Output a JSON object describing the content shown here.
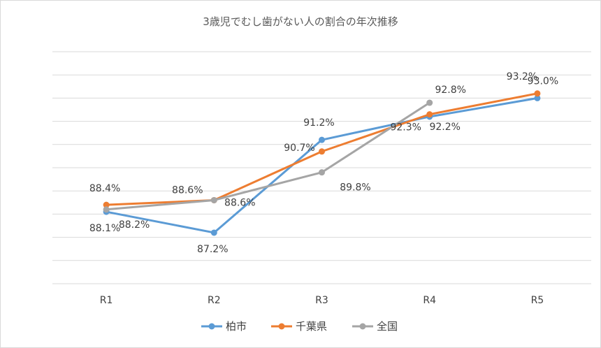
{
  "chart_data": {
    "type": "line",
    "title": "3歳児でむし歯がない人の割合の年次推移",
    "categories": [
      "R1",
      "R2",
      "R3",
      "R4",
      "R5"
    ],
    "ylim": [
      85.0,
      95.0
    ],
    "grid": true,
    "legend_position": "bottom",
    "series": [
      {
        "name": "柏市",
        "color": "#5b9bd5",
        "values": [
          88.1,
          87.2,
          91.2,
          92.2,
          93.0
        ],
        "labels": [
          "88.1%",
          "87.2%",
          "91.2%",
          "92.2%",
          "93.0%"
        ]
      },
      {
        "name": "千葉県",
        "color": "#ed7d31",
        "values": [
          88.4,
          88.6,
          90.7,
          92.3,
          93.2
        ],
        "labels": [
          "88.4%",
          "88.6%",
          "90.7%",
          "92.3%",
          "93.2%"
        ]
      },
      {
        "name": "全国",
        "color": "#a5a5a5",
        "values": [
          88.2,
          88.6,
          89.8,
          92.8,
          null
        ],
        "labels": [
          "88.2%",
          "88.6%",
          "89.8%",
          "92.8%",
          null
        ]
      }
    ]
  }
}
